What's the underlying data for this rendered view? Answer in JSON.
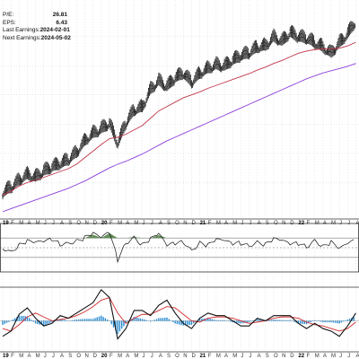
{
  "stats": [
    {
      "label": "P/E:",
      "value": "26.81"
    },
    {
      "label": "EPS:",
      "value": "6.43"
    },
    {
      "label": "Last Earnings:",
      "value": "2024-02-01"
    },
    {
      "label": "Next Earnings:",
      "value": "2024-05-02"
    }
  ],
  "x_axis_labels": [
    "19",
    "F",
    "M",
    "A",
    "M",
    "J",
    "J",
    "A",
    "S",
    "O",
    "N",
    "D",
    "20",
    "F",
    "M",
    "A",
    "M",
    "J",
    "J",
    "A",
    "S",
    "O",
    "N",
    "D",
    "21",
    "F",
    "M",
    "A",
    "M",
    "J",
    "J",
    "A",
    "S",
    "O",
    "N",
    "D",
    "22",
    "F",
    "M",
    "A",
    "M",
    "J",
    "J",
    "A"
  ],
  "year_labels": [
    "19",
    "20",
    "21",
    "22"
  ],
  "colors": {
    "price": "#111111",
    "ma_short": "#c0374a",
    "ma_long": "#8b3fd9",
    "rsi_fill": "#4a7a3e",
    "macd": "#111111",
    "signal": "#d12b2b",
    "histogram": "#2a8bd0",
    "grid": "#cfd6dc",
    "panel_border": "#333333"
  },
  "chart_data": [
    {
      "type": "line",
      "panel": "price",
      "title": "",
      "xlabel": "",
      "ylabel": "",
      "grid": true,
      "x": [
        0,
        1,
        2,
        3,
        4,
        5,
        6,
        7,
        8,
        9,
        10,
        11,
        12,
        13,
        14,
        15,
        16,
        17,
        18,
        19,
        20,
        21,
        22,
        23,
        24,
        25,
        26,
        27,
        28,
        29,
        30,
        31,
        32,
        33,
        34,
        35,
        36,
        37,
        38,
        39,
        40,
        41,
        42,
        43
      ],
      "series": [
        {
          "style": "ohlc-bars",
          "values": [
            5,
            12,
            22,
            30,
            26,
            34,
            40,
            44,
            50,
            60,
            76,
            86,
            92,
            100,
            72,
            100,
            118,
            122,
            146,
            158,
            150,
            162,
            168,
            156,
            168,
            175,
            180,
            178,
            186,
            192,
            196,
            204,
            206,
            218,
            212,
            224,
            218,
            216,
            210,
            204,
            196,
            210,
            222,
            240
          ]
        },
        {
          "style": "line",
          "values": [
            3,
            8,
            15,
            20,
            23,
            27,
            31,
            35,
            39,
            45,
            54,
            63,
            72,
            80,
            82,
            86,
            92,
            98,
            108,
            118,
            124,
            130,
            136,
            140,
            144,
            149,
            153,
            157,
            161,
            165,
            169,
            174,
            178,
            183,
            187,
            192,
            197,
            200,
            202,
            203,
            203,
            204,
            207,
            212
          ]
        },
        {
          "style": "line",
          "values": [
            -20,
            -16,
            -12,
            -8,
            -4,
            0,
            4,
            8,
            12,
            17,
            22,
            28,
            34,
            40,
            45,
            49,
            54,
            59,
            65,
            71,
            77,
            82,
            87,
            92,
            97,
            102,
            107,
            112,
            117,
            122,
            127,
            132,
            137,
            142,
            147,
            152,
            157,
            162,
            166,
            170,
            173,
            176,
            179,
            183
          ]
        }
      ]
    },
    {
      "type": "line",
      "panel": "rsi",
      "title": "",
      "ylim": [
        0,
        100
      ],
      "x": [
        0,
        1,
        2,
        3,
        4,
        5,
        6,
        7,
        8,
        9,
        10,
        11,
        12,
        13,
        14,
        15,
        16,
        17,
        18,
        19,
        20,
        21,
        22,
        23,
        24,
        25,
        26,
        27,
        28,
        29,
        30,
        31,
        32,
        33,
        34,
        35,
        36,
        37,
        38,
        39,
        40,
        41,
        42,
        43
      ],
      "series": [
        {
          "values": [
            50,
            42,
            55,
            62,
            58,
            60,
            66,
            57,
            60,
            64,
            70,
            77,
            68,
            80,
            25,
            60,
            72,
            55,
            66,
            76,
            52,
            58,
            62,
            45,
            60,
            54,
            64,
            62,
            56,
            60,
            54,
            62,
            56,
            66,
            62,
            55,
            58,
            52,
            66,
            52,
            60,
            45,
            56,
            64
          ]
        }
      ],
      "reference_lines": [
        70,
        50,
        30
      ]
    },
    {
      "type": "line",
      "panel": "macd",
      "title": "",
      "x": [
        0,
        1,
        2,
        3,
        4,
        5,
        6,
        7,
        8,
        9,
        10,
        11,
        12,
        13,
        14,
        15,
        16,
        17,
        18,
        19,
        20,
        21,
        22,
        23,
        24,
        25,
        26,
        27,
        28,
        29,
        30,
        31,
        32,
        33,
        34,
        35,
        36,
        37,
        38,
        39,
        40,
        41,
        42,
        43
      ],
      "series": [
        {
          "values": [
            -1.2,
            -0.8,
            0.5,
            1.0,
            0.2,
            -0.4,
            -0.2,
            0.4,
            0.2,
            0.6,
            1.0,
            1.4,
            2.4,
            1.8,
            -1.4,
            -0.6,
            0.8,
            0.8,
            0.4,
            1.2,
            1.6,
            0.6,
            -0.2,
            -0.6,
            0.2,
            0.6,
            0.4,
            0.4,
            0.0,
            -0.4,
            -0.4,
            0.2,
            0.0,
            0.4,
            0.4,
            0.4,
            -0.2,
            -0.6,
            -0.2,
            -0.6,
            -0.8,
            -1.2,
            -0.4,
            0.6
          ]
        },
        {
          "values": [
            -0.6,
            -0.8,
            -0.3,
            0.3,
            0.6,
            0.3,
            0.0,
            0.1,
            0.2,
            0.4,
            0.7,
            1.1,
            1.6,
            1.8,
            0.6,
            -0.2,
            0.2,
            0.5,
            0.5,
            0.8,
            1.1,
            1.0,
            0.5,
            0.0,
            -0.1,
            0.2,
            0.3,
            0.3,
            0.2,
            0.0,
            -0.2,
            -0.1,
            0.0,
            0.2,
            0.3,
            0.3,
            0.2,
            -0.1,
            -0.3,
            -0.4,
            -0.6,
            -0.8,
            -0.6,
            -0.1
          ]
        },
        {
          "style": "histogram",
          "values": [
            -0.6,
            0.0,
            0.8,
            0.7,
            -0.4,
            -0.7,
            -0.2,
            0.3,
            0.0,
            0.2,
            0.3,
            0.3,
            0.8,
            0.0,
            -2.0,
            -0.4,
            0.6,
            0.3,
            -0.1,
            0.4,
            0.5,
            -0.4,
            -0.7,
            -0.6,
            0.3,
            0.4,
            0.1,
            0.1,
            -0.2,
            -0.4,
            -0.2,
            0.3,
            0.0,
            0.2,
            0.1,
            0.1,
            -0.4,
            -0.5,
            0.1,
            -0.2,
            -0.2,
            -0.4,
            0.2,
            0.7
          ]
        }
      ]
    }
  ]
}
